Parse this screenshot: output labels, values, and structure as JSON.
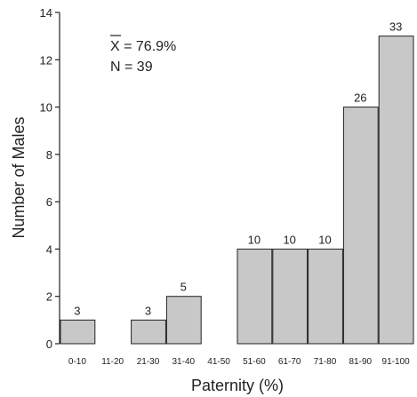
{
  "chart_data": {
    "type": "bar",
    "categories": [
      "0-10",
      "11-20",
      "21-30",
      "31-40",
      "41-50",
      "51-60",
      "61-70",
      "71-80",
      "81-90",
      "91-100"
    ],
    "values": [
      1,
      0,
      1,
      2,
      0,
      4,
      4,
      4,
      10,
      13
    ],
    "bar_labels": [
      "3",
      "",
      "3",
      "5",
      "",
      "10",
      "10",
      "10",
      "26",
      "33"
    ],
    "xlabel": "Paternity (%)",
    "ylabel": "Number of Males",
    "ylim": [
      0,
      14
    ],
    "yticks": [
      0,
      2,
      4,
      6,
      8,
      10,
      12,
      14
    ],
    "grid": false,
    "bar_color": "#c8c8c8",
    "annotations": {
      "mean_symbol": "X",
      "mean_text": " = 76.9%",
      "n_text": "N = 39"
    }
  }
}
